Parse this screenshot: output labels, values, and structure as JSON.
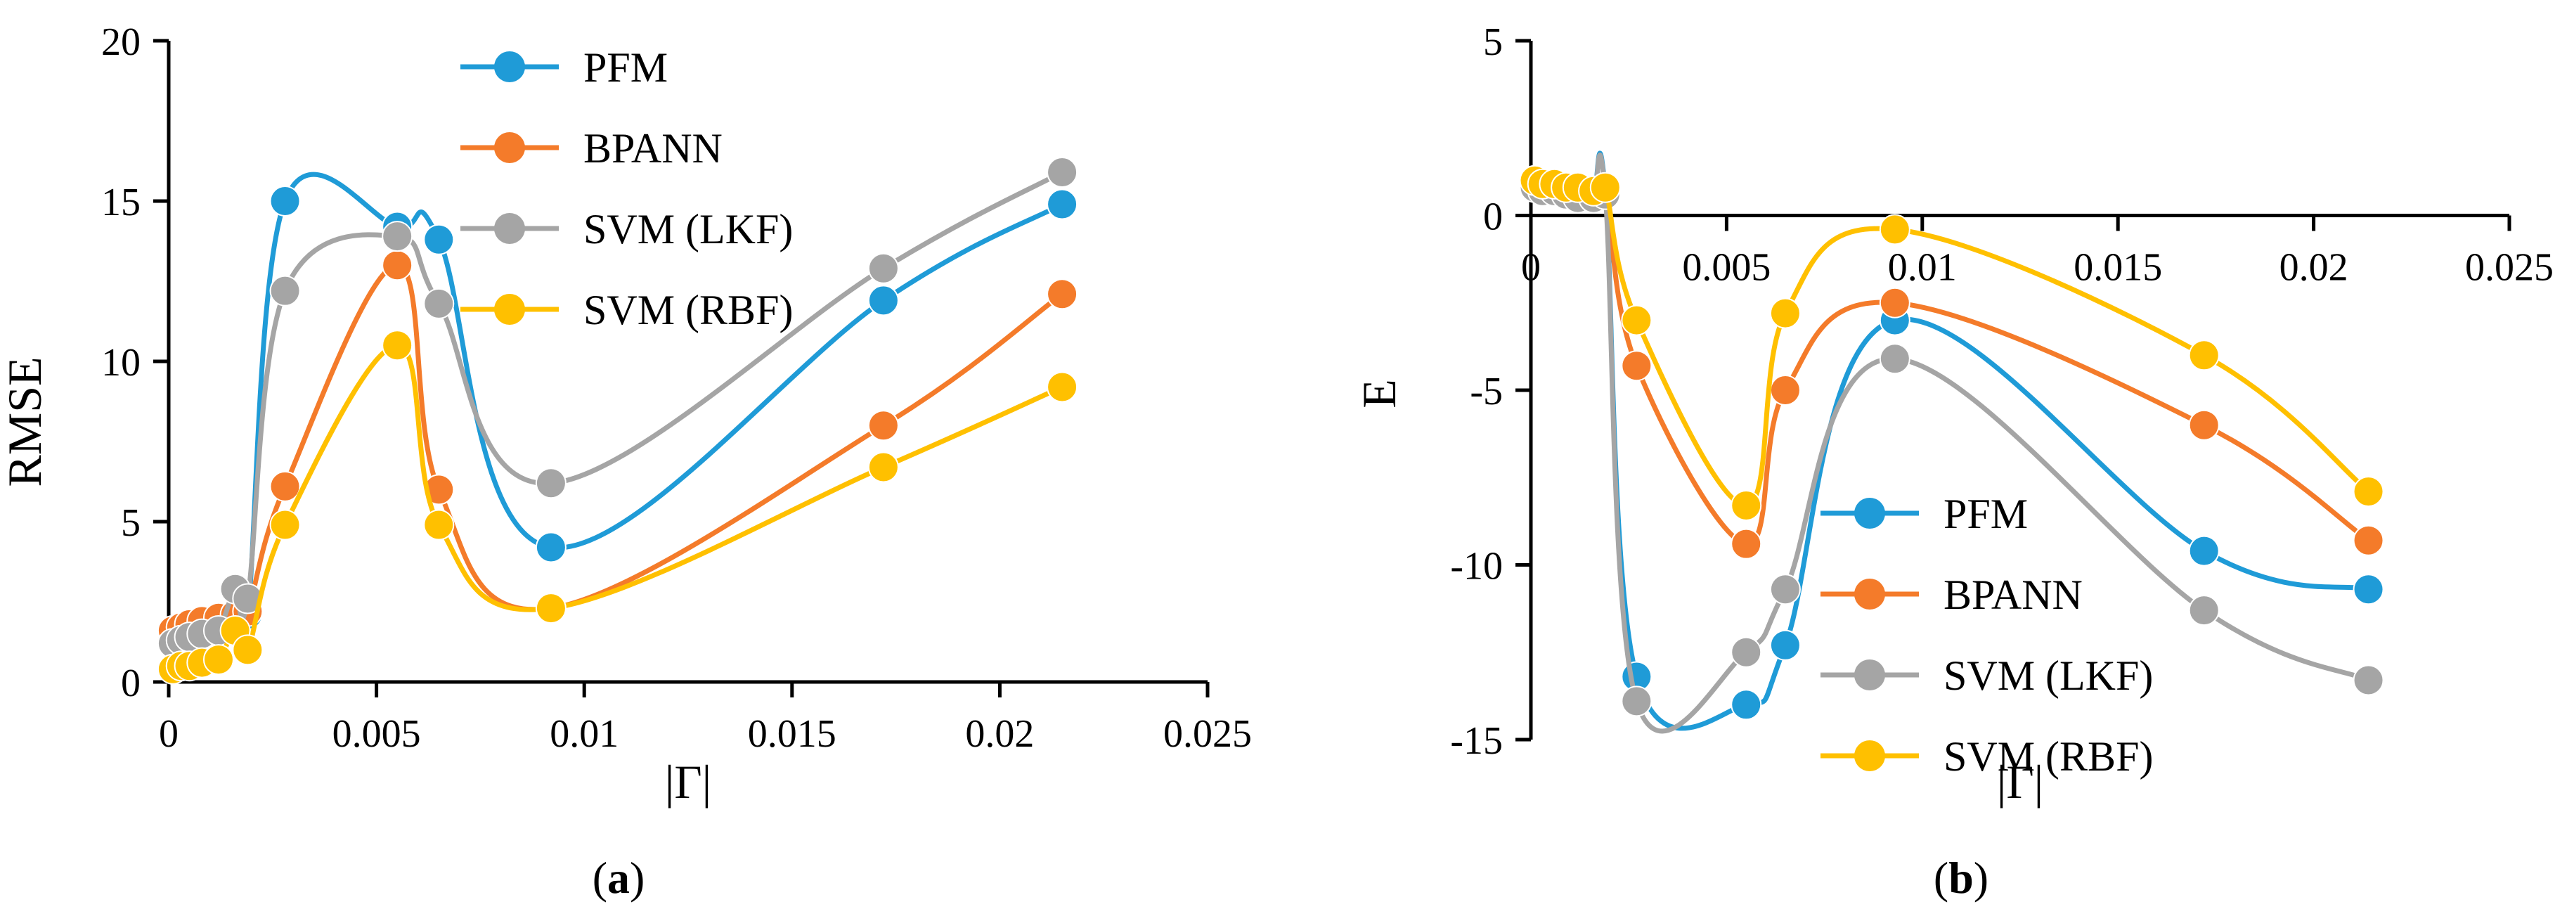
{
  "chart_data": [
    {
      "type": "line",
      "panel_label": "a",
      "ylabel": "RMSE",
      "xlabel": "|Γ|",
      "xlim": [
        0,
        0.025
      ],
      "ylim": [
        0,
        20
      ],
      "xticks": [
        "0",
        "0.005",
        "0.01",
        "0.015",
        "0.02",
        "0.025"
      ],
      "yticks": [
        "0",
        "5",
        "10",
        "15",
        "20"
      ],
      "legend_position": "top-center",
      "series": [
        {
          "name": "PFM",
          "color": "#1f9bd7",
          "x": [
            0.0001,
            0.0003,
            0.0005,
            0.0008,
            0.0012,
            0.0016,
            0.0019,
            0.0028,
            0.0055,
            0.0065,
            0.0092,
            0.0172,
            0.0215
          ],
          "y": [
            1.4,
            1.5,
            1.6,
            1.7,
            1.8,
            2.0,
            2.1,
            15.0,
            14.2,
            13.8,
            4.2,
            11.9,
            14.9
          ]
        },
        {
          "name": "BPANN",
          "color": "#f47b2a",
          "x": [
            0.0001,
            0.0003,
            0.0005,
            0.0008,
            0.0012,
            0.0016,
            0.0019,
            0.0028,
            0.0055,
            0.0065,
            0.0092,
            0.0172,
            0.0215
          ],
          "y": [
            1.6,
            1.7,
            1.8,
            1.9,
            2.0,
            2.1,
            2.2,
            6.1,
            13.0,
            6.0,
            2.3,
            8.0,
            12.1
          ]
        },
        {
          "name": "SVM (LKF)",
          "color": "#a5a5a5",
          "x": [
            0.0001,
            0.0003,
            0.0005,
            0.0008,
            0.0012,
            0.0016,
            0.0019,
            0.0028,
            0.0055,
            0.0065,
            0.0092,
            0.0172,
            0.0215
          ],
          "y": [
            1.2,
            1.3,
            1.4,
            1.5,
            1.6,
            2.9,
            2.6,
            12.2,
            13.9,
            11.8,
            6.2,
            12.9,
            15.9
          ]
        },
        {
          "name": "SVM (RBF)",
          "color": "#ffc000",
          "x": [
            0.0001,
            0.0003,
            0.0005,
            0.0008,
            0.0012,
            0.0016,
            0.0019,
            0.0028,
            0.0055,
            0.0065,
            0.0092,
            0.0172,
            0.0215
          ],
          "y": [
            0.4,
            0.5,
            0.5,
            0.6,
            0.7,
            1.6,
            1.0,
            4.9,
            10.5,
            4.9,
            2.3,
            6.7,
            9.2
          ]
        }
      ]
    },
    {
      "type": "line",
      "panel_label": "b",
      "ylabel": "E",
      "xlabel": "|Γ|",
      "xlim": [
        0,
        0.025
      ],
      "ylim": [
        -15,
        5
      ],
      "xticks": [
        "0",
        "0.005",
        "0.01",
        "0.015",
        "0.02",
        "0.025"
      ],
      "yticks": [
        "5",
        "0",
        "-5",
        "-10",
        "-15"
      ],
      "legend_position": "bottom-center",
      "series": [
        {
          "name": "PFM",
          "color": "#1f9bd7",
          "x": [
            0.0001,
            0.0003,
            0.0006,
            0.0009,
            0.0012,
            0.0016,
            0.0019,
            0.0027,
            0.0055,
            0.0065,
            0.0093,
            0.0172,
            0.0214
          ],
          "y": [
            0.9,
            0.8,
            0.8,
            0.7,
            0.6,
            0.6,
            0.7,
            -13.2,
            -14.0,
            -12.3,
            -3.0,
            -9.6,
            -10.7
          ]
        },
        {
          "name": "BPANN",
          "color": "#f47b2a",
          "x": [
            0.0001,
            0.0003,
            0.0006,
            0.0009,
            0.0012,
            0.0016,
            0.0019,
            0.0027,
            0.0055,
            0.0065,
            0.0093,
            0.0172,
            0.0214
          ],
          "y": [
            0.9,
            0.8,
            0.8,
            0.7,
            0.6,
            0.6,
            0.7,
            -4.3,
            -9.4,
            -5.0,
            -2.5,
            -6.0,
            -9.3
          ]
        },
        {
          "name": "SVM (LKF)",
          "color": "#a5a5a5",
          "x": [
            0.0001,
            0.0003,
            0.0006,
            0.0009,
            0.0012,
            0.0016,
            0.0019,
            0.0027,
            0.0055,
            0.0065,
            0.0093,
            0.0172,
            0.0214
          ],
          "y": [
            0.8,
            0.7,
            0.7,
            0.6,
            0.5,
            0.5,
            0.6,
            -13.9,
            -12.5,
            -10.7,
            -4.1,
            -11.3,
            -13.3
          ]
        },
        {
          "name": "SVM (RBF)",
          "color": "#ffc000",
          "x": [
            0.0001,
            0.0003,
            0.0006,
            0.0009,
            0.0012,
            0.0016,
            0.0019,
            0.0027,
            0.0055,
            0.0065,
            0.0093,
            0.0172,
            0.0214
          ],
          "y": [
            1.0,
            0.9,
            0.9,
            0.8,
            0.8,
            0.7,
            0.8,
            -3.0,
            -8.3,
            -2.8,
            -0.4,
            -4.0,
            -7.9
          ]
        }
      ]
    }
  ]
}
